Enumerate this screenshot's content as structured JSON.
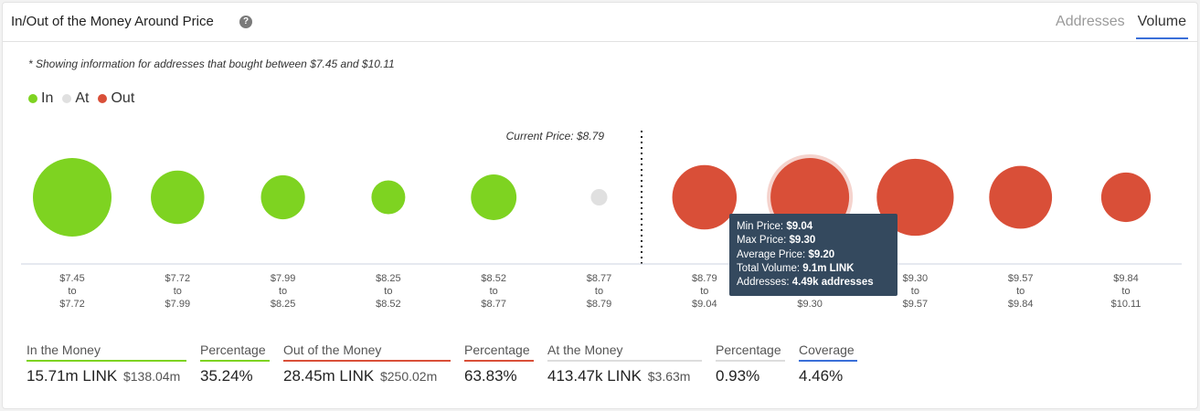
{
  "header": {
    "title": "In/Out of the Money Around Price",
    "help_icon": "help-icon",
    "tabs": [
      {
        "label": "Addresses",
        "active": false
      },
      {
        "label": "Volume",
        "active": true
      }
    ]
  },
  "note": "* Showing information for addresses that bought between $7.45 and $10.11",
  "colors": {
    "in": "#7ed321",
    "at": "#e0e0e0",
    "out": "#d94f38",
    "tab_accent": "#3a6fd8",
    "coverage": "#3a6fd8"
  },
  "chart_data": {
    "type": "bubble",
    "title": "",
    "legend": [
      {
        "label": "In",
        "color": "#7ed321"
      },
      {
        "label": "At",
        "color": "#e0e0e0"
      },
      {
        "label": "Out",
        "color": "#d94f38"
      }
    ],
    "current_price_label": "Current Price: $8.79",
    "categories": [
      {
        "min": "$7.45",
        "max": "$7.72",
        "status": "in",
        "size": 1.0
      },
      {
        "min": "$7.72",
        "max": "$7.99",
        "status": "in",
        "size": 0.68
      },
      {
        "min": "$7.99",
        "max": "$8.25",
        "status": "in",
        "size": 0.56
      },
      {
        "min": "$8.25",
        "max": "$8.52",
        "status": "in",
        "size": 0.43
      },
      {
        "min": "$8.52",
        "max": "$8.77",
        "status": "in",
        "size": 0.58
      },
      {
        "min": "$8.77",
        "max": "$8.79",
        "status": "at",
        "size": 0.21
      },
      {
        "min": "$8.79",
        "max": "$9.04",
        "status": "out",
        "size": 0.82
      },
      {
        "min": "$9.04",
        "max": "$9.30",
        "status": "out",
        "size": 1.0,
        "highlighted": true
      },
      {
        "min": "$9.30",
        "max": "$9.57",
        "status": "out",
        "size": 0.98
      },
      {
        "min": "$9.57",
        "max": "$9.84",
        "status": "out",
        "size": 0.8
      },
      {
        "min": "$9.84",
        "max": "$10.11",
        "status": "out",
        "size": 0.63
      }
    ],
    "to_word": "to"
  },
  "tooltip": {
    "min_price_label": "Min Price:",
    "min_price": "$9.04",
    "max_price_label": "Max Price:",
    "max_price": "$9.30",
    "avg_price_label": "Average Price:",
    "avg_price": "$9.20",
    "volume_label": "Total Volume:",
    "volume": "9.1m LINK",
    "addresses_label": "Addresses:",
    "addresses": "4.49k addresses"
  },
  "stats": [
    {
      "label": "In the Money",
      "value": "15.71m LINK",
      "sub": "$138.04m",
      "color": "#7ed321"
    },
    {
      "label": "Percentage",
      "value": "35.24%",
      "sub": "",
      "color": "#7ed321"
    },
    {
      "label": "Out of the Money",
      "value": "28.45m LINK",
      "sub": "$250.02m",
      "color": "#d94f38"
    },
    {
      "label": "Percentage",
      "value": "63.83%",
      "sub": "",
      "color": "#d94f38"
    },
    {
      "label": "At the Money",
      "value": "413.47k LINK",
      "sub": "$3.63m",
      "color": "#dddddd"
    },
    {
      "label": "Percentage",
      "value": "0.93%",
      "sub": "",
      "color": "#dddddd"
    },
    {
      "label": "Coverage",
      "value": "4.46%",
      "sub": "",
      "color": "#3a6fd8"
    }
  ]
}
